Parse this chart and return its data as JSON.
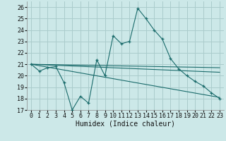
{
  "xlabel": "Humidex (Indice chaleur)",
  "bg_color": "#cce8e8",
  "grid_color": "#aacccc",
  "line_color": "#1a6b6b",
  "xlim": [
    -0.5,
    23.5
  ],
  "ylim": [
    17,
    26.5
  ],
  "yticks": [
    17,
    18,
    19,
    20,
    21,
    22,
    23,
    24,
    25,
    26
  ],
  "xticks": [
    0,
    1,
    2,
    3,
    4,
    5,
    6,
    7,
    8,
    9,
    10,
    11,
    12,
    13,
    14,
    15,
    16,
    17,
    18,
    19,
    20,
    21,
    22,
    23
  ],
  "main_x": [
    0,
    1,
    2,
    3,
    4,
    5,
    6,
    7,
    8,
    9,
    10,
    11,
    12,
    13,
    14,
    15,
    16,
    17,
    18,
    19,
    20,
    21,
    22,
    23
  ],
  "main_y": [
    21.0,
    20.4,
    20.7,
    20.8,
    19.4,
    17.0,
    18.2,
    17.6,
    21.4,
    20.0,
    23.5,
    22.8,
    23.0,
    25.9,
    25.0,
    24.0,
    23.2,
    21.5,
    20.6,
    20.0,
    19.5,
    19.1,
    18.5,
    18.0
  ],
  "trend_lines": [
    {
      "x": [
        0,
        23
      ],
      "y": [
        21.0,
        20.7
      ]
    },
    {
      "x": [
        0,
        23
      ],
      "y": [
        21.0,
        20.3
      ]
    },
    {
      "x": [
        0,
        23
      ],
      "y": [
        21.0,
        18.1
      ]
    }
  ],
  "xlabel_fontsize": 7,
  "tick_fontsize": 6
}
